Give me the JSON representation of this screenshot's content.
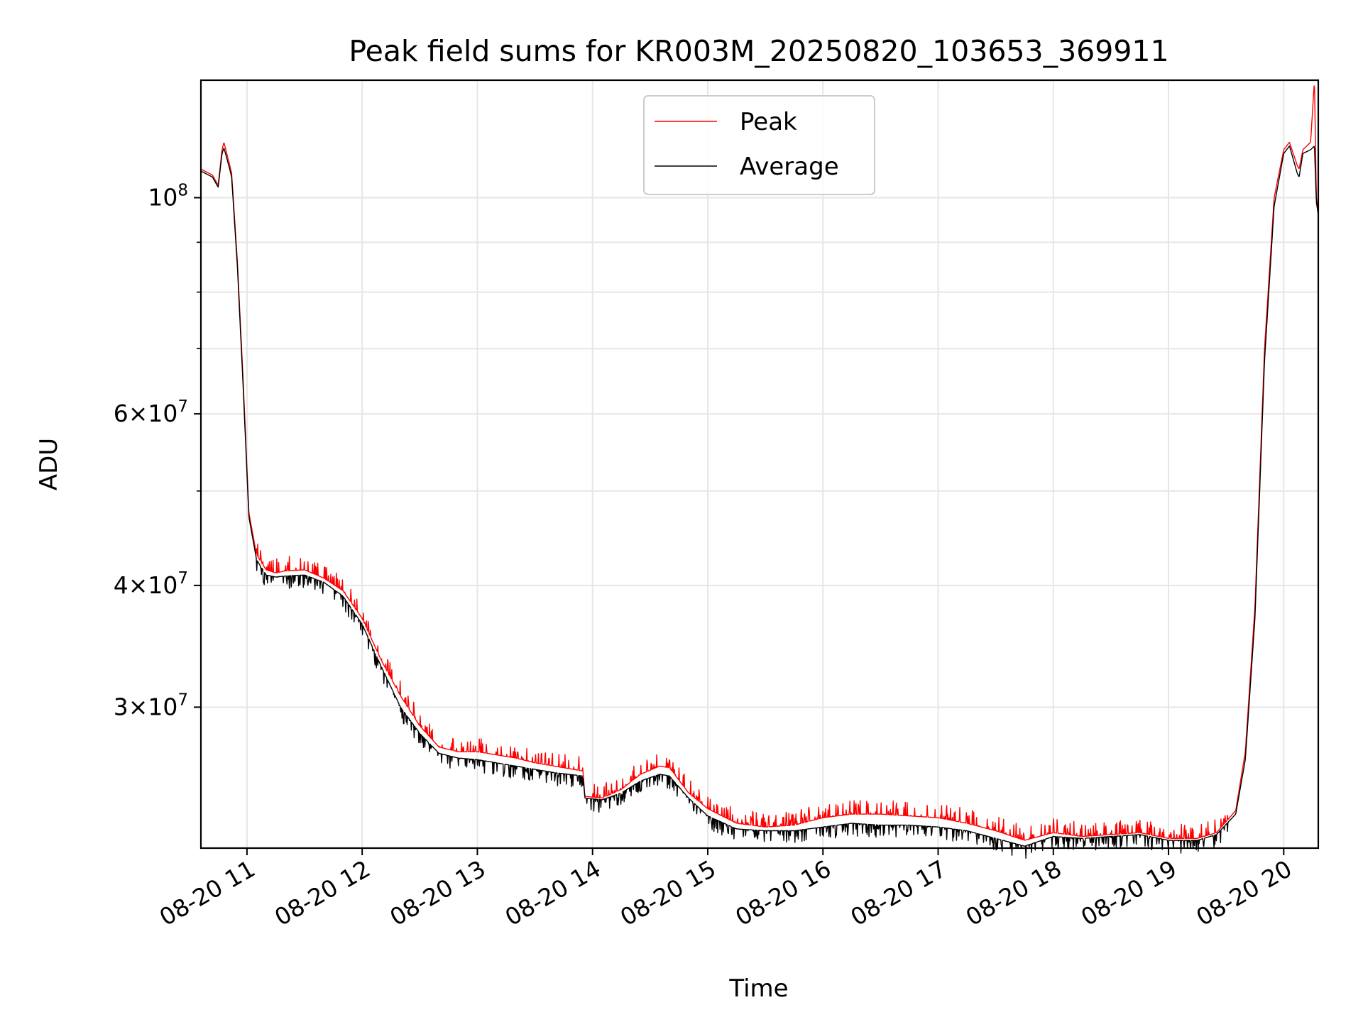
{
  "chart_data": {
    "type": "line",
    "title": "Peak field sums for KR003M_20250820_103653_369911",
    "xlabel": "Time",
    "ylabel": "ADU",
    "x_ticks": [
      "08-20 11",
      "08-20 12",
      "08-20 13",
      "08-20 14",
      "08-20 15",
      "08-20 16",
      "08-20 17",
      "08-20 18",
      "08-20 19",
      "08-20 20"
    ],
    "y_ticks": [
      {
        "value": 30000000,
        "mantissa": "3",
        "exponent": "7"
      },
      {
        "value": 40000000,
        "mantissa": "4",
        "exponent": "7"
      },
      {
        "value": 60000000,
        "mantissa": "6",
        "exponent": "7"
      },
      {
        "value": 100000000,
        "mantissa": "",
        "exponent": "8"
      }
    ],
    "yscale": "log",
    "xlim": [
      "2025-08-20 10:36",
      "2025-08-20 20:18"
    ],
    "ylim": [
      21500000,
      132000000
    ],
    "grid": true,
    "legend_position": "upper center",
    "series": [
      {
        "name": "Peak",
        "color": "#ff0000",
        "x": [
          "2025-08-20 10:36",
          "2025-08-20 10:42",
          "2025-08-20 10:45",
          "2025-08-20 10:47",
          "2025-08-20 10:48",
          "2025-08-20 10:51",
          "2025-08-20 10:52",
          "2025-08-20 10:55",
          "2025-08-20 10:58",
          "2025-08-20 11:01",
          "2025-08-20 11:05",
          "2025-08-20 11:10",
          "2025-08-20 11:15",
          "2025-08-20 11:20",
          "2025-08-20 11:30",
          "2025-08-20 11:40",
          "2025-08-20 11:50",
          "2025-08-20 12:00",
          "2025-08-20 12:10",
          "2025-08-20 12:20",
          "2025-08-20 12:30",
          "2025-08-20 12:40",
          "2025-08-20 12:50",
          "2025-08-20 13:00",
          "2025-08-20 13:10",
          "2025-08-20 13:20",
          "2025-08-20 13:30",
          "2025-08-20 13:40",
          "2025-08-20 13:55",
          "2025-08-20 13:56",
          "2025-08-20 14:05",
          "2025-08-20 14:15",
          "2025-08-20 14:25",
          "2025-08-20 14:35",
          "2025-08-20 14:40",
          "2025-08-20 14:50",
          "2025-08-20 15:00",
          "2025-08-20 15:15",
          "2025-08-20 15:30",
          "2025-08-20 15:45",
          "2025-08-20 16:00",
          "2025-08-20 16:15",
          "2025-08-20 16:30",
          "2025-08-20 16:45",
          "2025-08-20 17:00",
          "2025-08-20 17:15",
          "2025-08-20 17:30",
          "2025-08-20 17:45",
          "2025-08-20 18:00",
          "2025-08-20 18:15",
          "2025-08-20 18:30",
          "2025-08-20 18:45",
          "2025-08-20 19:00",
          "2025-08-20 19:15",
          "2025-08-20 19:25",
          "2025-08-20 19:35",
          "2025-08-20 19:40",
          "2025-08-20 19:45",
          "2025-08-20 19:50",
          "2025-08-20 19:55",
          "2025-08-20 20:00",
          "2025-08-20 20:03",
          "2025-08-20 20:07",
          "2025-08-20 20:08",
          "2025-08-20 20:10",
          "2025-08-20 20:14",
          "2025-08-20 20:16",
          "2025-08-20 20:17",
          "2025-08-20 20:18"
        ],
        "values": [
          107000000,
          105500000,
          103000000,
          112000000,
          114000000,
          108000000,
          106000000,
          86000000,
          65000000,
          47500000,
          43000000,
          41500000,
          41200000,
          41400000,
          41500000,
          40700000,
          39500000,
          37000000,
          33500000,
          30800000,
          28700000,
          27300000,
          27000000,
          27000000,
          26800000,
          26600000,
          26300000,
          26100000,
          25800000,
          24300000,
          24200000,
          24700000,
          25600000,
          26100000,
          26000000,
          24500000,
          23600000,
          22800000,
          22600000,
          22700000,
          23100000,
          23300000,
          23300000,
          23200000,
          23100000,
          22800000,
          22400000,
          21900000,
          22300000,
          22100000,
          22200000,
          22300000,
          22000000,
          22000000,
          22300000,
          23500000,
          27000000,
          38000000,
          70000000,
          100000000,
          112000000,
          114000000,
          108000000,
          107000000,
          112000000,
          114000000,
          132000000,
          100000000,
          97000000
        ]
      },
      {
        "name": "Average",
        "color": "#000000",
        "x": [
          "2025-08-20 10:36",
          "2025-08-20 10:42",
          "2025-08-20 10:45",
          "2025-08-20 10:47",
          "2025-08-20 10:48",
          "2025-08-20 10:51",
          "2025-08-20 10:52",
          "2025-08-20 10:55",
          "2025-08-20 10:58",
          "2025-08-20 11:01",
          "2025-08-20 11:05",
          "2025-08-20 11:10",
          "2025-08-20 11:15",
          "2025-08-20 11:20",
          "2025-08-20 11:30",
          "2025-08-20 11:40",
          "2025-08-20 11:50",
          "2025-08-20 12:00",
          "2025-08-20 12:10",
          "2025-08-20 12:20",
          "2025-08-20 12:30",
          "2025-08-20 12:40",
          "2025-08-20 12:50",
          "2025-08-20 13:00",
          "2025-08-20 13:10",
          "2025-08-20 13:20",
          "2025-08-20 13:30",
          "2025-08-20 13:40",
          "2025-08-20 13:55",
          "2025-08-20 13:56",
          "2025-08-20 14:05",
          "2025-08-20 14:15",
          "2025-08-20 14:25",
          "2025-08-20 14:35",
          "2025-08-20 14:40",
          "2025-08-20 14:50",
          "2025-08-20 15:00",
          "2025-08-20 15:15",
          "2025-08-20 15:30",
          "2025-08-20 15:45",
          "2025-08-20 16:00",
          "2025-08-20 16:15",
          "2025-08-20 16:30",
          "2025-08-20 16:45",
          "2025-08-20 17:00",
          "2025-08-20 17:15",
          "2025-08-20 17:30",
          "2025-08-20 17:45",
          "2025-08-20 18:00",
          "2025-08-20 18:15",
          "2025-08-20 18:30",
          "2025-08-20 18:45",
          "2025-08-20 19:00",
          "2025-08-20 19:15",
          "2025-08-20 19:25",
          "2025-08-20 19:35",
          "2025-08-20 19:40",
          "2025-08-20 19:45",
          "2025-08-20 19:50",
          "2025-08-20 19:55",
          "2025-08-20 20:00",
          "2025-08-20 20:03",
          "2025-08-20 20:07",
          "2025-08-20 20:08",
          "2025-08-20 20:10",
          "2025-08-20 20:14",
          "2025-08-20 20:16",
          "2025-08-20 20:17",
          "2025-08-20 20:18"
        ],
        "values": [
          106500000,
          105000000,
          102500000,
          111000000,
          112500000,
          107000000,
          105000000,
          85000000,
          64000000,
          47000000,
          42500000,
          41000000,
          40800000,
          40900000,
          41000000,
          40300000,
          39000000,
          36500000,
          33000000,
          30000000,
          28200000,
          26900000,
          26600000,
          26500000,
          26300000,
          26100000,
          25900000,
          25700000,
          25500000,
          24200000,
          24100000,
          24500000,
          25200000,
          25600000,
          25500000,
          24200000,
          23200000,
          22500000,
          22400000,
          22400000,
          22600000,
          22800000,
          22700000,
          22700000,
          22600000,
          22400000,
          22000000,
          21600000,
          22100000,
          22000000,
          22100000,
          22200000,
          21900000,
          21900000,
          22200000,
          23300000,
          26500000,
          37000000,
          68000000,
          98000000,
          111000000,
          113000000,
          106000000,
          105000000,
          111000000,
          112000000,
          113000000,
          99000000,
          96000000
        ]
      }
    ]
  }
}
